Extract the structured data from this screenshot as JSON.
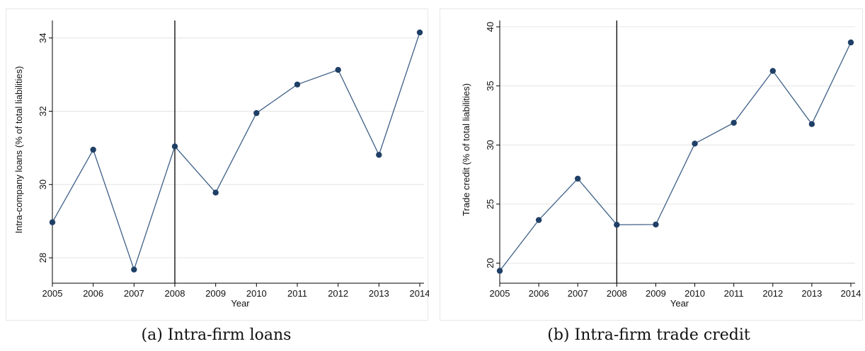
{
  "chart_data": [
    {
      "type": "line",
      "title": "",
      "xlabel": "Year",
      "ylabel": "Intra-company loans (% of total liabilities)",
      "x": [
        2005,
        2006,
        2007,
        2008,
        2009,
        2010,
        2011,
        2012,
        2013,
        2014
      ],
      "series": [
        {
          "values": [
            28.97,
            30.95,
            27.68,
            31.04,
            29.78,
            31.95,
            32.73,
            33.13,
            30.81,
            34.15
          ]
        }
      ],
      "xticks": [
        "2005",
        "2006",
        "2007",
        "2008",
        "2009",
        "2010",
        "2011",
        "2012",
        "2013",
        "2014"
      ],
      "yticks": [
        "28",
        "30",
        "32",
        "34"
      ],
      "ytick_values": [
        28,
        30,
        32,
        34
      ],
      "ylim": [
        27.5,
        34.4
      ],
      "vline": 2008,
      "grid": true,
      "caption": "(a) Intra-firm loans",
      "colors": {
        "line": "#3d5f86",
        "marker": "#1f3f66",
        "grid": "#e4e4e4",
        "vline": "#000000"
      }
    },
    {
      "type": "line",
      "title": "",
      "xlabel": "Year",
      "ylabel": "Trade credit (% of total liabilities)",
      "x": [
        2005,
        2006,
        2007,
        2008,
        2009,
        2010,
        2011,
        2012,
        2013,
        2014
      ],
      "series": [
        {
          "values": [
            19.35,
            23.65,
            27.15,
            23.25,
            23.27,
            30.12,
            31.88,
            36.27,
            31.77,
            38.68
          ]
        }
      ],
      "xticks": [
        "2005",
        "2006",
        "2007",
        "2008",
        "2009",
        "2010",
        "2011",
        "2012",
        "2013",
        "2014"
      ],
      "yticks": [
        "20",
        "25",
        "30",
        "35",
        "40"
      ],
      "ytick_values": [
        20,
        25,
        30,
        35,
        40
      ],
      "ylim": [
        18.9,
        40.3
      ],
      "vline": 2008,
      "grid": true,
      "caption": "(b) Intra-firm trade credit",
      "colors": {
        "line": "#3d5f86",
        "marker": "#1f3f66",
        "grid": "#e4e4e4",
        "vline": "#000000"
      }
    }
  ]
}
